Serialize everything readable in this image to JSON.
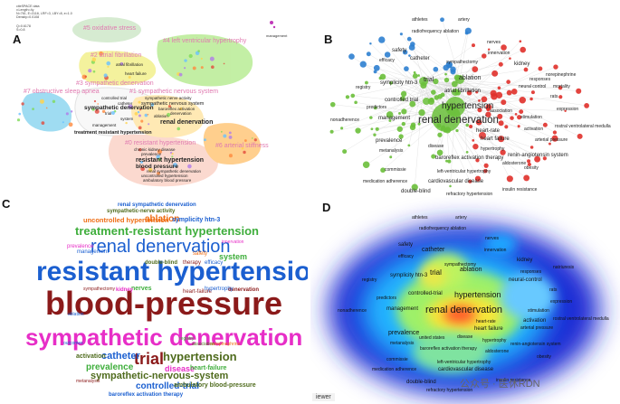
{
  "panels": {
    "a": "A",
    "b": "B",
    "c": "C",
    "d": "D"
  },
  "panel_a": {
    "header_lines": [
      "citeSPACE data",
      "v.Length=4y",
      "N=761, E=3116, LRF=3, LBY=8, e=1.0",
      "Density=0.0108"
    ],
    "meta_lines": [
      "Q=0.6178",
      "S=0.8"
    ],
    "side_label": "management",
    "clusters": [
      "#5 oxidative stress",
      "#4 left ventricular hypertrophy",
      "#2 atrial fibrillation",
      "#3 sympathetic denervation",
      "#7 obstructive sleep apnea",
      "#1 sympathetic nervous system",
      "#0 resistant hypertension",
      "#6 arterial stiffness"
    ],
    "nodes": [
      "atrial fibrillation",
      "heart failure",
      "sympathetic nerve activity",
      "sympathetic nervous system",
      "sympathetic denervation",
      "controlled trial",
      "catheter",
      "trial",
      "system",
      "management",
      "baroreflex activation",
      "ablation",
      "denervation",
      "renal denervation",
      "treatment resistant hypertension",
      "chronic kidney disease",
      "prevalence",
      "resistant hypertension",
      "blood pressure",
      "renal sympathetic denervation",
      "uncontrolled hypertension",
      "ambulatory blood pressure"
    ]
  },
  "panel_b": {
    "nodes": [
      "athletes",
      "artery",
      "radiofrequency ablation",
      "nerves",
      "safety",
      "catheter",
      "sympathectomy",
      "innervation",
      "efficacy",
      "kidney",
      "symplicity htn-3",
      "trial",
      "ablation",
      "atrial fibrillation",
      "responses",
      "registry",
      "hypertension",
      "controlled trial",
      "predictors",
      "renal denervation",
      "nonadherence",
      "management",
      "heart-rate",
      "heart failure",
      "prevalence",
      "activation",
      "metanalysis",
      "disease",
      "baroreflex activation therapy",
      "renin-angiotensin system",
      "cardiovascular disease",
      "left-ventricular hypertrophy",
      "commissie",
      "obesity",
      "medication adherence",
      "double-blind",
      "refractory hypertension",
      "insulin resistance",
      "neural control",
      "rats",
      "expression",
      "stimulation",
      "norepinephrine",
      "aldosterone",
      "hypertrophy",
      "rostral ventrolateral medulla",
      "arterial pressure",
      "association",
      "mortality"
    ]
  },
  "panel_c": {
    "words": [
      "renal sympathetic denervation",
      "sympathetic-nerve activity",
      "uncontrolled hypertension",
      "ablation",
      "symplicity htn-3",
      "treatment-resistant hypertension",
      "renal denervation",
      "prevalence",
      "system",
      "resistant hypertension",
      "blood-pressure",
      "sympathetic denervation",
      "trial",
      "hypertension",
      "catheter",
      "activation",
      "prevalence",
      "disease",
      "sympathetic-nervous-system",
      "heart-failure",
      "controlled-trial",
      "ambulatory blood-pressure",
      "baroreflex activation therapy",
      "nerves",
      "management",
      "heart-failure",
      "innervation",
      "denervation",
      "efficacy",
      "double-blind",
      "therapy",
      "safety",
      "outcomes",
      "sympathectomy",
      "hypertrophy",
      "registry",
      "kidney",
      "ablation",
      "metanalysis",
      "norepinephrine",
      "association"
    ]
  },
  "panel_d": {
    "labels": [
      "athletes",
      "artery",
      "radiofrequency ablation",
      "nerves",
      "safety",
      "catheter",
      "innervation",
      "efficacy",
      "kidney",
      "ablation",
      "sympathectomy",
      "responses",
      "natriuresis",
      "symplicity htn-3",
      "trial",
      "registry",
      "neural-control",
      "rats",
      "predictors",
      "controlled-trial",
      "hypertension",
      "expression",
      "nonadherence",
      "management",
      "renal denervation",
      "stimulation",
      "heart-rate",
      "activation",
      "arterial pressure",
      "rostral ventrolateral medulla",
      "heart failure",
      "prevalence",
      "united states",
      "disease",
      "hypertrophy",
      "renin-angiotensin system",
      "metanalysis",
      "baroreflex activation therapy",
      "aldosterone",
      "obesity",
      "commissie",
      "left-ventricular hypertrophy",
      "cardiovascular disease",
      "medication adherence",
      "double-blind",
      "insulin resistance",
      "refractory hypertension"
    ],
    "viewer_label": "iewer",
    "watermark": "公众号 · 医休RDN"
  },
  "colors": {
    "b_red": "#e0302a",
    "b_green": "#6abf3a",
    "b_blue": "#2e7fd0",
    "b_edge": "#d9d9d9",
    "c_blue": "#1b5fd0",
    "c_darkred": "#8b1a1a",
    "c_magenta": "#e72ec7",
    "c_green": "#3fae3c",
    "c_orange": "#ef6c12",
    "c_olive": "#4f6b1d"
  }
}
